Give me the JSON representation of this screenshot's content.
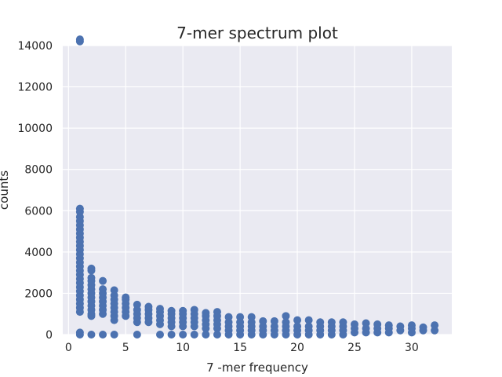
{
  "chart_data": {
    "type": "scatter",
    "title": "7-mer spectrum plot",
    "xlabel": "7 -mer frequency",
    "ylabel": "counts",
    "xlim": [
      -0.5,
      33.5
    ],
    "ylim": [
      0,
      14000
    ],
    "xticks": [
      0,
      5,
      10,
      15,
      20,
      25,
      30
    ],
    "yticks": [
      0,
      2000,
      4000,
      6000,
      8000,
      10000,
      12000,
      14000
    ],
    "grid": true,
    "background": "#eaeaf2",
    "marker_color": "#4c72b0",
    "columns": [
      {
        "x": 1,
        "y": [
          0,
          100,
          1100,
          1300,
          1500,
          1700,
          1900,
          2100,
          2300,
          2500,
          2700,
          2900,
          3100,
          3300,
          3500,
          3700,
          3900,
          4100,
          4300,
          4500,
          4700,
          4900,
          5100,
          5300,
          5500,
          5700,
          5950,
          6100,
          14200,
          14300
        ]
      },
      {
        "x": 2,
        "y": [
          0,
          900,
          1000,
          1200,
          1400,
          1600,
          1800,
          2000,
          2200,
          2400,
          2600,
          2750,
          3100,
          3200
        ]
      },
      {
        "x": 3,
        "y": [
          0,
          1000,
          1200,
          1400,
          1600,
          1800,
          2000,
          2200,
          2600
        ]
      },
      {
        "x": 4,
        "y": [
          0,
          700,
          900,
          1100,
          1300,
          1500,
          1700,
          1900,
          2150
        ]
      },
      {
        "x": 5,
        "y": [
          900,
          1100,
          1300,
          1500,
          1700,
          1800
        ]
      },
      {
        "x": 6,
        "y": [
          0,
          600,
          800,
          1000,
          1200,
          1450
        ]
      },
      {
        "x": 7,
        "y": [
          600,
          800,
          1000,
          1200,
          1350
        ]
      },
      {
        "x": 8,
        "y": [
          0,
          500,
          700,
          900,
          1100,
          1250
        ]
      },
      {
        "x": 9,
        "y": [
          0,
          400,
          600,
          800,
          1000,
          1150
        ]
      },
      {
        "x": 10,
        "y": [
          0,
          400,
          600,
          800,
          1000,
          1150
        ]
      },
      {
        "x": 11,
        "y": [
          0,
          400,
          600,
          800,
          1000,
          1200
        ]
      },
      {
        "x": 12,
        "y": [
          0,
          300,
          500,
          700,
          900,
          1050
        ]
      },
      {
        "x": 13,
        "y": [
          0,
          300,
          500,
          700,
          900,
          1100
        ]
      },
      {
        "x": 14,
        "y": [
          0,
          200,
          400,
          600,
          850
        ]
      },
      {
        "x": 15,
        "y": [
          0,
          200,
          400,
          600,
          850
        ]
      },
      {
        "x": 16,
        "y": [
          0,
          200,
          400,
          600,
          850
        ]
      },
      {
        "x": 17,
        "y": [
          0,
          200,
          400,
          650
        ]
      },
      {
        "x": 18,
        "y": [
          0,
          200,
          400,
          650
        ]
      },
      {
        "x": 19,
        "y": [
          0,
          200,
          400,
          600,
          900
        ]
      },
      {
        "x": 20,
        "y": [
          0,
          200,
          400,
          700
        ]
      },
      {
        "x": 21,
        "y": [
          0,
          200,
          400,
          700
        ]
      },
      {
        "x": 22,
        "y": [
          0,
          200,
          400,
          600
        ]
      },
      {
        "x": 23,
        "y": [
          0,
          200,
          400,
          600
        ]
      },
      {
        "x": 24,
        "y": [
          0,
          200,
          400,
          600
        ]
      },
      {
        "x": 25,
        "y": [
          100,
          300,
          500
        ]
      },
      {
        "x": 26,
        "y": [
          100,
          300,
          550
        ]
      },
      {
        "x": 27,
        "y": [
          100,
          300,
          500
        ]
      },
      {
        "x": 28,
        "y": [
          100,
          300,
          450
        ]
      },
      {
        "x": 29,
        "y": [
          200,
          400
        ]
      },
      {
        "x": 30,
        "y": [
          100,
          300,
          450
        ]
      },
      {
        "x": 31,
        "y": [
          200,
          350
        ]
      },
      {
        "x": 32,
        "y": [
          200,
          450
        ]
      }
    ]
  }
}
